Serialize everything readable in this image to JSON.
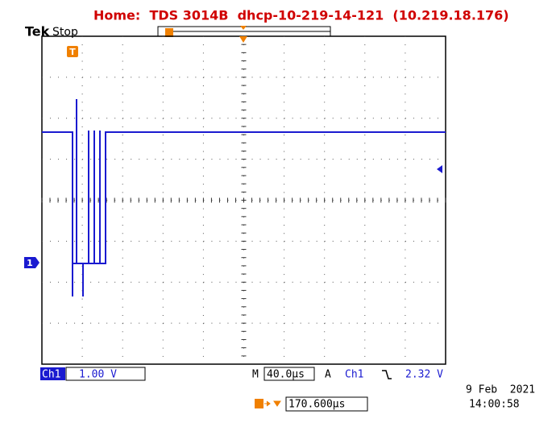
{
  "header": {
    "title": "Home:  TDS 3014B  dhcp-10-219-14-121  (10.219.18.176)"
  },
  "status": {
    "brand": "Tek",
    "state": "Stop"
  },
  "markers": {
    "trigger": "T",
    "channel": "1"
  },
  "readout": {
    "channel": "Ch1",
    "scale": "1.00 V",
    "time_label": "M",
    "time_scale": "40.0µs",
    "trigger_label": "A",
    "trigger_source": "Ch1",
    "trigger_level": "2.32 V",
    "trigger_position": "170.600µs"
  },
  "timestamp": {
    "date": "9 Feb  2021",
    "time": "14:00:58"
  }
}
